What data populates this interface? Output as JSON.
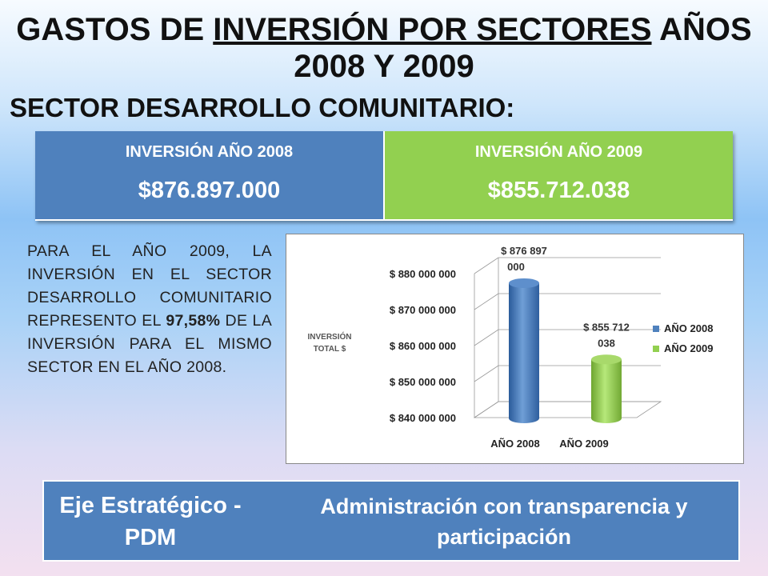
{
  "title": {
    "part1": "GASTOS DE ",
    "part2": "INVERSIÓN POR SECTORES",
    "part3": " AÑOS 2008 Y 2009"
  },
  "subtitle": "SECTOR DESARROLLO COMUNITARIO:",
  "investment_table": {
    "col2008": {
      "header": "INVERSIÓN AÑO 2008",
      "value": "$876.897.000"
    },
    "col2009": {
      "header": "INVERSIÓN AÑO 2009",
      "value": "$855.712.038"
    }
  },
  "paragraph": {
    "before": "PARA EL AÑO 2009, LA INVERSIÓN EN EL SECTOR DESARROLLO COMUNITARIO REPRESENTO EL ",
    "highlight": "97,58%",
    "after": " DE LA INVERSIÓN PARA EL MISMO SECTOR EN EL AÑO 2008."
  },
  "chart_data": {
    "type": "bar",
    "style": "3d-cylinder",
    "categories": [
      "AÑO 2008",
      "AÑO 2009"
    ],
    "series": [
      {
        "name": "AÑO 2008",
        "values": [
          876897000,
          null
        ],
        "label": "$ 876 897 000",
        "color": "#4f81bd"
      },
      {
        "name": "AÑO 2009",
        "values": [
          null,
          855712038
        ],
        "label": "$ 855 712 038",
        "color": "#92d050"
      }
    ],
    "ylabel": "INVERSIÓN TOTAL $",
    "ylim": [
      840000000,
      880000000
    ],
    "yticks": [
      "$ 840 000 000",
      "$ 850 000 000",
      "$ 860 000 000",
      "$ 870 000 000",
      "$ 880 000 000"
    ],
    "grid": true,
    "legend_position": "right"
  },
  "eje": {
    "label": "Eje Estratégico - PDM",
    "value": "Administración con transparencia y participación"
  }
}
